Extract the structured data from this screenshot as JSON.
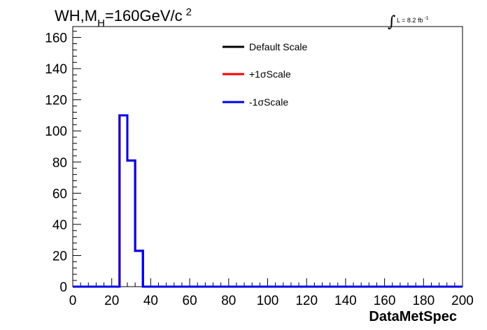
{
  "chart_data": {
    "type": "line",
    "title_parts": {
      "prefix": "WH,M",
      "sub": "H",
      "main": "=160GeV/c",
      "sup": "2"
    },
    "lumi": {
      "integral": "∫",
      "text": "L = 8.2 fb",
      "sup": "-1"
    },
    "xlabel": "DataMetSpec",
    "xlim": [
      0,
      200
    ],
    "ylim": [
      0,
      167
    ],
    "x_ticks": [
      0,
      20,
      40,
      60,
      80,
      100,
      120,
      140,
      160,
      180,
      200
    ],
    "y_ticks": [
      0,
      20,
      40,
      60,
      80,
      100,
      120,
      140,
      160
    ],
    "bin_edges": [
      0,
      24,
      28,
      32,
      36,
      200
    ],
    "series": [
      {
        "name": "Default Scale",
        "color": "#000000",
        "values": [
          0,
          110,
          81,
          23,
          0
        ]
      },
      {
        "name": "+1σScale",
        "color": "#ff0000",
        "values": [
          0,
          110,
          81,
          23,
          0
        ]
      },
      {
        "name": "-1σScale",
        "color": "#0000ee",
        "values": [
          0,
          110,
          81,
          23,
          0
        ]
      }
    ],
    "legend_position": "top-center",
    "grid": false
  }
}
